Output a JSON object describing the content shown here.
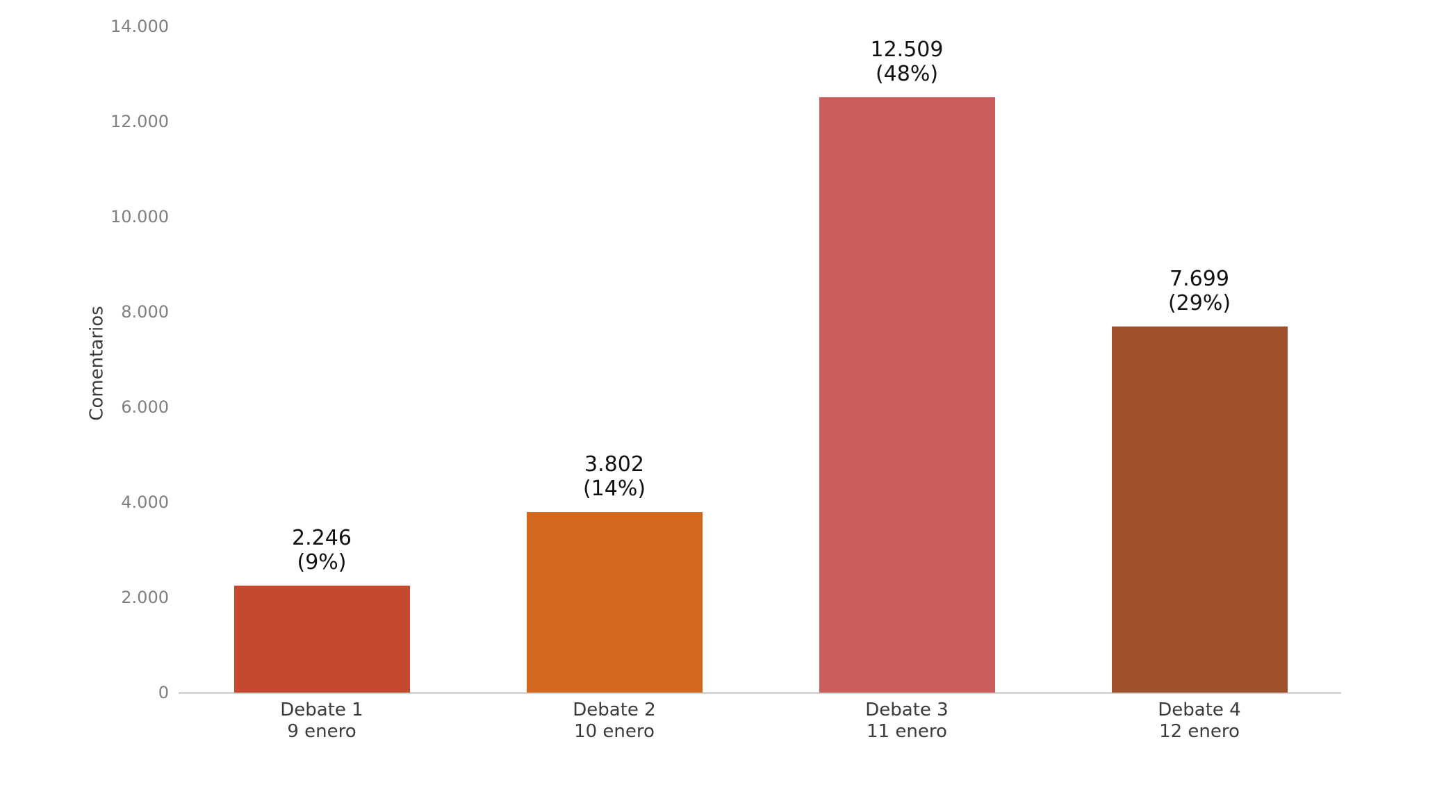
{
  "chart_data": {
    "type": "bar",
    "ylabel": "Comentarios",
    "ylim": [
      0,
      14000
    ],
    "grid": false,
    "legend": null,
    "yticks": [
      {
        "value": 0,
        "label": "0"
      },
      {
        "value": 2000,
        "label": "2.000"
      },
      {
        "value": 4000,
        "label": "4.000"
      },
      {
        "value": 6000,
        "label": "6.000"
      },
      {
        "value": 8000,
        "label": "8.000"
      },
      {
        "value": 10000,
        "label": "10.000"
      },
      {
        "value": 12000,
        "label": "12.000"
      },
      {
        "value": 14000,
        "label": "14.000"
      }
    ],
    "bars": [
      {
        "category": "Debate 1",
        "date": "9 enero",
        "value": 2246,
        "value_label": "2.246",
        "percent_label": "(9%)",
        "color": "#C5492E"
      },
      {
        "category": "Debate 2",
        "date": "10 enero",
        "value": 3802,
        "value_label": "3.802",
        "percent_label": "(14%)",
        "color": "#D2691E"
      },
      {
        "category": "Debate 3",
        "date": "11 enero",
        "value": 12509,
        "value_label": "12.509",
        "percent_label": "(48%)",
        "color": "#CD5C5C"
      },
      {
        "category": "Debate 4",
        "date": "12 enero",
        "value": 7699,
        "value_label": "7.699",
        "percent_label": "(29%)",
        "color": "#A0522D"
      }
    ],
    "palette": {
      "background": "#FFFFFF",
      "axis_line": "#D6D6D6",
      "tick_text": "#7F7F7F",
      "axis_label_text": "#3B3B3B",
      "category_text": "#3B3B3B",
      "value_text": "#111111"
    }
  }
}
